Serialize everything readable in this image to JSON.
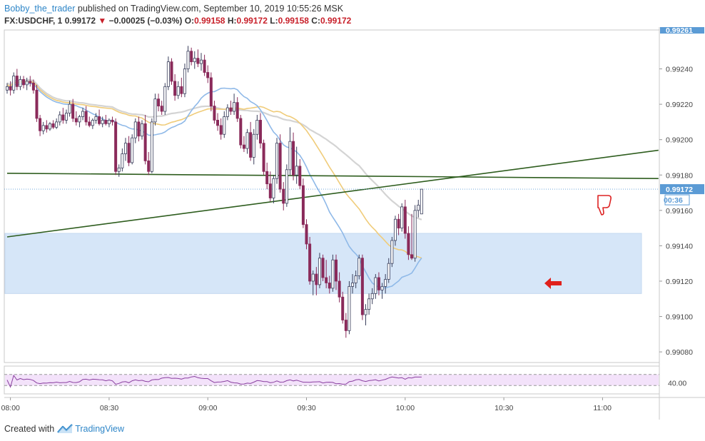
{
  "header": {
    "author": "Bobby_the_trader",
    "published": "published on TradingView.com, September 10, 2019 10:55:26 MSK",
    "symbol": "FX:USDCHF, 1",
    "last": "0.99172",
    "change": "−0.00025 (−0.03%)",
    "o_label": "O:",
    "o": "0.99158",
    "h_label": "H:",
    "h": "0.99172",
    "l_label": "L:",
    "l": "0.99158",
    "c_label": "C:",
    "c": "0.99172"
  },
  "footer": {
    "created_with": "Created with",
    "brand": "TradingView"
  },
  "colors": {
    "up_candle": "#3a3f5c",
    "down_candle": "#8a2a5a",
    "ma_fast": "#8fb9e8",
    "ma_mid": "#f0cc7a",
    "ma_slow": "#d4d4d4",
    "trendline": "#2e5d1e",
    "zone": "#d6e6f8",
    "rsi_line": "#8a3fa0",
    "rsi_band": "#f3e2fa",
    "price_tag": "#5b9bd5",
    "arrow": "#e0201c"
  },
  "chart_data": {
    "type": "candlestick",
    "symbol": "FX:USDCHF",
    "timeframe": "1",
    "x_ticks": [
      "08:00",
      "08:30",
      "09:00",
      "09:30",
      "10:00",
      "10:30",
      "11:00"
    ],
    "y_ticks": [
      "0.99080",
      "0.99100",
      "0.99120",
      "0.99140",
      "0.99160",
      "0.99180",
      "0.99200",
      "0.99220",
      "0.99240"
    ],
    "top_price_label": "0.99261",
    "ylim": [
      0.99074,
      0.99262
    ],
    "last_price_label": "0.99172",
    "countdown": "00:36",
    "rsi": {
      "tick": "40.00",
      "band": [
        30,
        70
      ],
      "ylim": [
        0,
        100
      ]
    },
    "support_zone": {
      "from": 0.99113,
      "to": 0.99147
    },
    "trendlines": [
      {
        "name": "horizontal",
        "from": [
          "07:59",
          0.99181
        ],
        "to": [
          "11:17",
          0.99178
        ]
      },
      {
        "name": "rising",
        "from": [
          "07:59",
          0.99145
        ],
        "to": [
          "11:17",
          0.99194
        ]
      }
    ],
    "candles": [
      {
        "o": 0.99228,
        "h": 0.99232,
        "l": 0.99226,
        "c": 0.9923
      },
      {
        "o": 0.9923,
        "h": 0.99233,
        "l": 0.99225,
        "c": 0.99228
      },
      {
        "o": 0.99228,
        "h": 0.99238,
        "l": 0.99226,
        "c": 0.99236
      },
      {
        "o": 0.99236,
        "h": 0.9924,
        "l": 0.99228,
        "c": 0.9923
      },
      {
        "o": 0.9923,
        "h": 0.99236,
        "l": 0.99228,
        "c": 0.99234
      },
      {
        "o": 0.99234,
        "h": 0.99236,
        "l": 0.99229,
        "c": 0.99231
      },
      {
        "o": 0.99231,
        "h": 0.99235,
        "l": 0.99228,
        "c": 0.99233
      },
      {
        "o": 0.99233,
        "h": 0.99236,
        "l": 0.9923,
        "c": 0.99232
      },
      {
        "o": 0.99232,
        "h": 0.99234,
        "l": 0.99226,
        "c": 0.99228
      },
      {
        "o": 0.99228,
        "h": 0.99231,
        "l": 0.9921,
        "c": 0.99212
      },
      {
        "o": 0.99212,
        "h": 0.99214,
        "l": 0.99202,
        "c": 0.99205
      },
      {
        "o": 0.99205,
        "h": 0.9921,
        "l": 0.99203,
        "c": 0.99208
      },
      {
        "o": 0.99208,
        "h": 0.99211,
        "l": 0.99204,
        "c": 0.99206
      },
      {
        "o": 0.99206,
        "h": 0.9921,
        "l": 0.99205,
        "c": 0.99209
      },
      {
        "o": 0.99209,
        "h": 0.99211,
        "l": 0.99206,
        "c": 0.99207
      },
      {
        "o": 0.99207,
        "h": 0.99212,
        "l": 0.99206,
        "c": 0.9921
      },
      {
        "o": 0.9921,
        "h": 0.99216,
        "l": 0.99208,
        "c": 0.99214
      },
      {
        "o": 0.99214,
        "h": 0.99218,
        "l": 0.99209,
        "c": 0.99211
      },
      {
        "o": 0.99211,
        "h": 0.99217,
        "l": 0.99209,
        "c": 0.99215
      },
      {
        "o": 0.99215,
        "h": 0.99222,
        "l": 0.99213,
        "c": 0.9922
      },
      {
        "o": 0.9922,
        "h": 0.99223,
        "l": 0.9921,
        "c": 0.99212
      },
      {
        "o": 0.99212,
        "h": 0.99216,
        "l": 0.99208,
        "c": 0.9921
      },
      {
        "o": 0.9921,
        "h": 0.99214,
        "l": 0.99207,
        "c": 0.99213
      },
      {
        "o": 0.99213,
        "h": 0.99218,
        "l": 0.99211,
        "c": 0.99216
      },
      {
        "o": 0.99216,
        "h": 0.99219,
        "l": 0.99208,
        "c": 0.9921
      },
      {
        "o": 0.9921,
        "h": 0.99213,
        "l": 0.99207,
        "c": 0.99208
      },
      {
        "o": 0.99208,
        "h": 0.99212,
        "l": 0.99206,
        "c": 0.99211
      },
      {
        "o": 0.99211,
        "h": 0.99215,
        "l": 0.99209,
        "c": 0.99213
      },
      {
        "o": 0.99213,
        "h": 0.99217,
        "l": 0.99208,
        "c": 0.99209
      },
      {
        "o": 0.99209,
        "h": 0.99213,
        "l": 0.99207,
        "c": 0.99211
      },
      {
        "o": 0.99211,
        "h": 0.99214,
        "l": 0.99208,
        "c": 0.99209
      },
      {
        "o": 0.99209,
        "h": 0.99212,
        "l": 0.99207,
        "c": 0.99211
      },
      {
        "o": 0.99211,
        "h": 0.99213,
        "l": 0.99208,
        "c": 0.9921
      },
      {
        "o": 0.9921,
        "h": 0.99212,
        "l": 0.9918,
        "c": 0.99182
      },
      {
        "o": 0.99182,
        "h": 0.99186,
        "l": 0.99179,
        "c": 0.99184
      },
      {
        "o": 0.99184,
        "h": 0.99195,
        "l": 0.99182,
        "c": 0.99192
      },
      {
        "o": 0.99192,
        "h": 0.99201,
        "l": 0.99188,
        "c": 0.99198
      },
      {
        "o": 0.99198,
        "h": 0.99202,
        "l": 0.99185,
        "c": 0.99187
      },
      {
        "o": 0.99187,
        "h": 0.99203,
        "l": 0.99186,
        "c": 0.99201
      },
      {
        "o": 0.99201,
        "h": 0.99212,
        "l": 0.99198,
        "c": 0.9921
      },
      {
        "o": 0.9921,
        "h": 0.99213,
        "l": 0.99199,
        "c": 0.99202
      },
      {
        "o": 0.99202,
        "h": 0.99211,
        "l": 0.992,
        "c": 0.99209
      },
      {
        "o": 0.99209,
        "h": 0.99214,
        "l": 0.99186,
        "c": 0.99188
      },
      {
        "o": 0.99188,
        "h": 0.99193,
        "l": 0.9918,
        "c": 0.99182
      },
      {
        "o": 0.99182,
        "h": 0.99212,
        "l": 0.99181,
        "c": 0.9921
      },
      {
        "o": 0.9921,
        "h": 0.99226,
        "l": 0.99208,
        "c": 0.99223
      },
      {
        "o": 0.99223,
        "h": 0.99226,
        "l": 0.99216,
        "c": 0.99219
      },
      {
        "o": 0.99219,
        "h": 0.99222,
        "l": 0.99214,
        "c": 0.99216
      },
      {
        "o": 0.99216,
        "h": 0.99232,
        "l": 0.99214,
        "c": 0.9923
      },
      {
        "o": 0.9923,
        "h": 0.99247,
        "l": 0.99228,
        "c": 0.99244
      },
      {
        "o": 0.99244,
        "h": 0.99246,
        "l": 0.99231,
        "c": 0.99233
      },
      {
        "o": 0.99233,
        "h": 0.99237,
        "l": 0.99222,
        "c": 0.99225
      },
      {
        "o": 0.99225,
        "h": 0.99233,
        "l": 0.99223,
        "c": 0.9923
      },
      {
        "o": 0.9923,
        "h": 0.99235,
        "l": 0.99224,
        "c": 0.99226
      },
      {
        "o": 0.99226,
        "h": 0.99243,
        "l": 0.99224,
        "c": 0.9924
      },
      {
        "o": 0.9924,
        "h": 0.99253,
        "l": 0.99238,
        "c": 0.9925
      },
      {
        "o": 0.9925,
        "h": 0.99252,
        "l": 0.99242,
        "c": 0.99244
      },
      {
        "o": 0.99244,
        "h": 0.9925,
        "l": 0.9924,
        "c": 0.99246
      },
      {
        "o": 0.99246,
        "h": 0.99251,
        "l": 0.99241,
        "c": 0.99243
      },
      {
        "o": 0.99243,
        "h": 0.99249,
        "l": 0.99239,
        "c": 0.99245
      },
      {
        "o": 0.99245,
        "h": 0.99248,
        "l": 0.99236,
        "c": 0.99238
      },
      {
        "o": 0.99238,
        "h": 0.99242,
        "l": 0.99232,
        "c": 0.99235
      },
      {
        "o": 0.99235,
        "h": 0.99238,
        "l": 0.99216,
        "c": 0.99219
      },
      {
        "o": 0.99219,
        "h": 0.99222,
        "l": 0.99209,
        "c": 0.99211
      },
      {
        "o": 0.99211,
        "h": 0.99215,
        "l": 0.99205,
        "c": 0.99208
      },
      {
        "o": 0.99208,
        "h": 0.99212,
        "l": 0.992,
        "c": 0.99203
      },
      {
        "o": 0.99203,
        "h": 0.99216,
        "l": 0.99201,
        "c": 0.99213
      },
      {
        "o": 0.99213,
        "h": 0.9922,
        "l": 0.99211,
        "c": 0.99218
      },
      {
        "o": 0.99218,
        "h": 0.99222,
        "l": 0.99214,
        "c": 0.99216
      },
      {
        "o": 0.99216,
        "h": 0.99226,
        "l": 0.99214,
        "c": 0.99221
      },
      {
        "o": 0.99221,
        "h": 0.99224,
        "l": 0.9921,
        "c": 0.99212
      },
      {
        "o": 0.99212,
        "h": 0.99214,
        "l": 0.99195,
        "c": 0.99197
      },
      {
        "o": 0.99197,
        "h": 0.99202,
        "l": 0.99193,
        "c": 0.99195
      },
      {
        "o": 0.99195,
        "h": 0.99206,
        "l": 0.99192,
        "c": 0.99204
      },
      {
        "o": 0.99204,
        "h": 0.9921,
        "l": 0.99188,
        "c": 0.9919
      },
      {
        "o": 0.9919,
        "h": 0.99206,
        "l": 0.99186,
        "c": 0.99203
      },
      {
        "o": 0.99203,
        "h": 0.99214,
        "l": 0.992,
        "c": 0.99211
      },
      {
        "o": 0.99211,
        "h": 0.99215,
        "l": 0.99195,
        "c": 0.99198
      },
      {
        "o": 0.99198,
        "h": 0.992,
        "l": 0.9918,
        "c": 0.99182
      },
      {
        "o": 0.99182,
        "h": 0.99187,
        "l": 0.99172,
        "c": 0.99175
      },
      {
        "o": 0.99175,
        "h": 0.99182,
        "l": 0.99165,
        "c": 0.99167
      },
      {
        "o": 0.99167,
        "h": 0.9918,
        "l": 0.99164,
        "c": 0.99178
      },
      {
        "o": 0.99178,
        "h": 0.99201,
        "l": 0.99175,
        "c": 0.99198
      },
      {
        "o": 0.99198,
        "h": 0.99203,
        "l": 0.9917,
        "c": 0.99172
      },
      {
        "o": 0.99172,
        "h": 0.99176,
        "l": 0.9916,
        "c": 0.99164
      },
      {
        "o": 0.99164,
        "h": 0.99186,
        "l": 0.99162,
        "c": 0.99183
      },
      {
        "o": 0.99183,
        "h": 0.99207,
        "l": 0.9918,
        "c": 0.99199
      },
      {
        "o": 0.99199,
        "h": 0.99204,
        "l": 0.99177,
        "c": 0.9918
      },
      {
        "o": 0.9918,
        "h": 0.99196,
        "l": 0.99175,
        "c": 0.99185
      },
      {
        "o": 0.99185,
        "h": 0.99189,
        "l": 0.99172,
        "c": 0.99174
      },
      {
        "o": 0.99174,
        "h": 0.99178,
        "l": 0.9915,
        "c": 0.99152
      },
      {
        "o": 0.99152,
        "h": 0.99155,
        "l": 0.99138,
        "c": 0.99141
      },
      {
        "o": 0.99141,
        "h": 0.99145,
        "l": 0.99118,
        "c": 0.9912
      },
      {
        "o": 0.9912,
        "h": 0.99126,
        "l": 0.99112,
        "c": 0.99124
      },
      {
        "o": 0.99124,
        "h": 0.99128,
        "l": 0.99112,
        "c": 0.99118
      },
      {
        "o": 0.99118,
        "h": 0.99136,
        "l": 0.99116,
        "c": 0.99133
      },
      {
        "o": 0.99133,
        "h": 0.99135,
        "l": 0.9912,
        "c": 0.99122
      },
      {
        "o": 0.99122,
        "h": 0.99132,
        "l": 0.99116,
        "c": 0.99119
      },
      {
        "o": 0.99119,
        "h": 0.99123,
        "l": 0.99113,
        "c": 0.99116
      },
      {
        "o": 0.99116,
        "h": 0.99135,
        "l": 0.99114,
        "c": 0.99132
      },
      {
        "o": 0.99132,
        "h": 0.99135,
        "l": 0.99115,
        "c": 0.9912
      },
      {
        "o": 0.9912,
        "h": 0.99125,
        "l": 0.99108,
        "c": 0.99111
      },
      {
        "o": 0.99111,
        "h": 0.99114,
        "l": 0.99096,
        "c": 0.99098
      },
      {
        "o": 0.99098,
        "h": 0.99102,
        "l": 0.99088,
        "c": 0.99092
      },
      {
        "o": 0.99092,
        "h": 0.9912,
        "l": 0.9909,
        "c": 0.99117
      },
      {
        "o": 0.99117,
        "h": 0.99124,
        "l": 0.99113,
        "c": 0.99119
      },
      {
        "o": 0.99119,
        "h": 0.99126,
        "l": 0.99116,
        "c": 0.99123
      },
      {
        "o": 0.99123,
        "h": 0.99135,
        "l": 0.99121,
        "c": 0.99133
      },
      {
        "o": 0.99133,
        "h": 0.99135,
        "l": 0.99098,
        "c": 0.99101
      },
      {
        "o": 0.99101,
        "h": 0.99107,
        "l": 0.99095,
        "c": 0.99104
      },
      {
        "o": 0.99104,
        "h": 0.99113,
        "l": 0.99101,
        "c": 0.9911
      },
      {
        "o": 0.9911,
        "h": 0.99116,
        "l": 0.99107,
        "c": 0.99113
      },
      {
        "o": 0.99113,
        "h": 0.99124,
        "l": 0.9911,
        "c": 0.99122
      },
      {
        "o": 0.99122,
        "h": 0.99125,
        "l": 0.99112,
        "c": 0.99115
      },
      {
        "o": 0.99115,
        "h": 0.99119,
        "l": 0.9911,
        "c": 0.99117
      },
      {
        "o": 0.99117,
        "h": 0.99124,
        "l": 0.99113,
        "c": 0.99121
      },
      {
        "o": 0.99121,
        "h": 0.99133,
        "l": 0.99119,
        "c": 0.9913
      },
      {
        "o": 0.9913,
        "h": 0.99145,
        "l": 0.99128,
        "c": 0.99143
      },
      {
        "o": 0.99143,
        "h": 0.99157,
        "l": 0.9914,
        "c": 0.99155
      },
      {
        "o": 0.99155,
        "h": 0.99158,
        "l": 0.99146,
        "c": 0.9915
      },
      {
        "o": 0.9915,
        "h": 0.99164,
        "l": 0.99148,
        "c": 0.99162
      },
      {
        "o": 0.99162,
        "h": 0.99166,
        "l": 0.99144,
        "c": 0.99147
      },
      {
        "o": 0.99147,
        "h": 0.99151,
        "l": 0.99132,
        "c": 0.99135
      },
      {
        "o": 0.99135,
        "h": 0.99158,
        "l": 0.99132,
        "c": 0.99133
      },
      {
        "o": 0.99133,
        "h": 0.99163,
        "l": 0.99131,
        "c": 0.9916
      },
      {
        "o": 0.9916,
        "h": 0.99166,
        "l": 0.99156,
        "c": 0.99163
      },
      {
        "o": 0.99158,
        "h": 0.99172,
        "l": 0.99158,
        "c": 0.99172
      }
    ]
  }
}
